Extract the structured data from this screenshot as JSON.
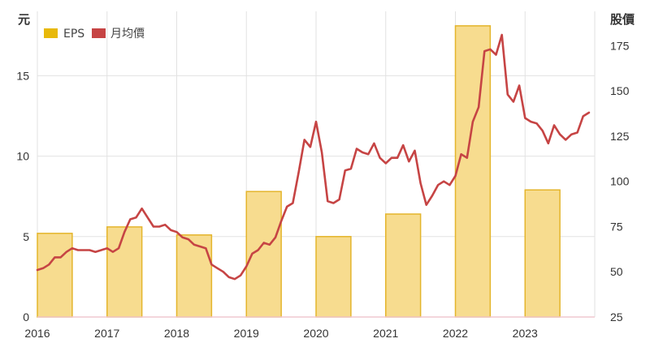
{
  "chart_data": {
    "type": "bar",
    "y_left_label": "元",
    "y_right_label": "股價",
    "legend": [
      {
        "name": "EPS",
        "color": "#e8b90a"
      },
      {
        "name": "月均價",
        "color": "#c64444"
      }
    ],
    "x_ticks": [
      "2016",
      "2017",
      "2018",
      "2019",
      "2020",
      "2021",
      "2022",
      "2023"
    ],
    "y_left_ticks": [
      0,
      5,
      10,
      15
    ],
    "y_right_ticks": [
      25,
      50,
      75,
      100,
      125,
      150,
      175
    ],
    "y_left_range": [
      0,
      19
    ],
    "y_right_range": [
      25,
      194
    ],
    "x_range": [
      2016.0,
      2024.0
    ],
    "bar_fill": "#f7dc8f",
    "bar_stroke": "#e4b52c",
    "line_color": "#c64444",
    "series": [
      {
        "name": "EPS",
        "axis": "left",
        "bars": [
          {
            "x_start": 2016.0,
            "x_end": 2016.5,
            "value": 5.2
          },
          {
            "x_start": 2017.0,
            "x_end": 2017.5,
            "value": 5.6
          },
          {
            "x_start": 2018.0,
            "x_end": 2018.5,
            "value": 5.1
          },
          {
            "x_start": 2019.0,
            "x_end": 2019.5,
            "value": 7.8
          },
          {
            "x_start": 2020.0,
            "x_end": 2020.5,
            "value": 5.0
          },
          {
            "x_start": 2021.0,
            "x_end": 2021.5,
            "value": 6.4
          },
          {
            "x_start": 2022.0,
            "x_end": 2022.5,
            "value": 18.1
          },
          {
            "x_start": 2023.0,
            "x_end": 2023.5,
            "value": 7.9
          }
        ]
      },
      {
        "name": "月均價",
        "axis": "right",
        "x": [
          2016.0,
          2016.083,
          2016.167,
          2016.25,
          2016.333,
          2016.417,
          2016.5,
          2016.583,
          2016.667,
          2016.75,
          2016.833,
          2016.917,
          2017.0,
          2017.083,
          2017.167,
          2017.25,
          2017.333,
          2017.417,
          2017.5,
          2017.583,
          2017.667,
          2017.75,
          2017.833,
          2017.917,
          2018.0,
          2018.083,
          2018.167,
          2018.25,
          2018.333,
          2018.417,
          2018.5,
          2018.583,
          2018.667,
          2018.75,
          2018.833,
          2018.917,
          2019.0,
          2019.083,
          2019.167,
          2019.25,
          2019.333,
          2019.417,
          2019.5,
          2019.583,
          2019.667,
          2019.75,
          2019.833,
          2019.917,
          2020.0,
          2020.083,
          2020.167,
          2020.25,
          2020.333,
          2020.417,
          2020.5,
          2020.583,
          2020.667,
          2020.75,
          2020.833,
          2020.917,
          2021.0,
          2021.083,
          2021.167,
          2021.25,
          2021.333,
          2021.417,
          2021.5,
          2021.583,
          2021.667,
          2021.75,
          2021.833,
          2021.917,
          2022.0,
          2022.083,
          2022.167,
          2022.25,
          2022.333,
          2022.417,
          2022.5,
          2022.583,
          2022.667,
          2022.75,
          2022.833,
          2022.917,
          2023.0,
          2023.083,
          2023.167,
          2023.25,
          2023.333,
          2023.417,
          2023.5,
          2023.583,
          2023.667,
          2023.75,
          2023.833,
          2023.917
        ],
        "values": [
          51,
          52,
          54,
          58,
          58,
          61,
          63,
          62,
          62,
          62,
          61,
          62,
          63,
          61,
          63,
          72,
          79,
          80,
          85,
          80,
          75,
          75,
          76,
          73,
          72,
          69,
          68,
          65,
          64,
          63,
          54,
          52,
          50,
          47,
          46,
          48,
          53,
          60,
          62,
          66,
          65,
          69,
          78,
          86,
          88,
          105,
          123,
          119,
          133,
          116,
          89,
          88,
          90,
          106,
          107,
          118,
          116,
          115,
          121,
          113,
          110,
          113,
          113,
          120,
          111,
          117,
          99,
          87,
          92,
          98,
          100,
          98,
          103,
          115,
          113,
          133,
          141,
          172,
          173,
          170,
          181,
          148,
          144,
          153,
          135,
          133,
          132,
          128,
          121,
          131,
          126,
          123,
          126,
          127,
          136,
          138
        ]
      }
    ]
  }
}
